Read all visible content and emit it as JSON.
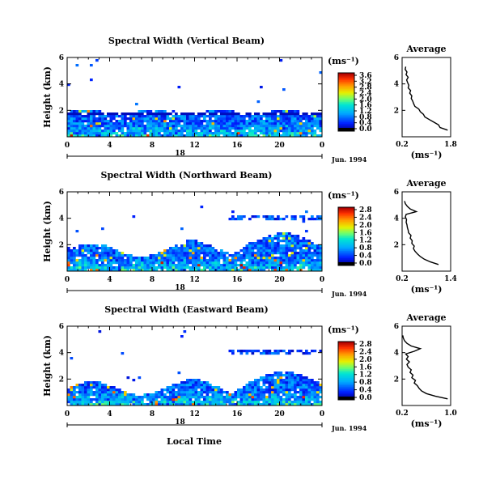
{
  "figure": {
    "xlabel": "Local Time",
    "date_label": "Jun. 1994",
    "day_label": "18",
    "ylabel": "Height (km)",
    "unit_label": "(ms⁻¹)",
    "average_title": "Average",
    "average_xlabel": "(ms⁻¹)"
  },
  "chart_data": [
    {
      "type": "heatmap",
      "title": "Spectral Width (Vertical Beam)",
      "x_ticks": [
        "0",
        "4",
        "8",
        "12",
        "16",
        "20",
        "0"
      ],
      "xlim": [
        0,
        24
      ],
      "y_ticks": [
        "6",
        "4",
        "2"
      ],
      "ylim": [
        0,
        6
      ],
      "colorbar": {
        "ticks": [
          "3.6",
          "3.2",
          "2.8",
          "2.4",
          "2.0",
          "1.6",
          "1.2",
          "0.8",
          "0.4",
          "0.0"
        ],
        "max": 3.6
      },
      "profile": {
        "title": "Average",
        "x_ticks": [
          "0.2",
          "1.8"
        ],
        "xlim": [
          0.2,
          1.8
        ],
        "y_ticks": [
          "6",
          "4",
          "2"
        ],
        "ylim": [
          0,
          6
        ],
        "height": [
          0.5,
          0.7,
          0.9,
          1.1,
          1.3,
          1.5,
          1.7,
          1.9,
          2.1,
          2.3,
          2.5,
          2.7,
          2.9,
          3.1,
          3.3,
          3.5,
          3.7,
          3.9,
          4.1,
          4.3,
          4.5,
          4.7,
          4.9,
          5.1,
          5.3
        ],
        "value": [
          1.7,
          1.45,
          1.4,
          1.25,
          1.1,
          0.95,
          0.9,
          0.8,
          0.75,
          0.62,
          0.58,
          0.55,
          0.5,
          0.52,
          0.45,
          0.48,
          0.4,
          0.42,
          0.38,
          0.35,
          0.4,
          0.33,
          0.36,
          0.3,
          0.32
        ]
      }
    },
    {
      "type": "heatmap",
      "title": "Spectral Width (Northward Beam)",
      "x_ticks": [
        "0",
        "4",
        "8",
        "12",
        "16",
        "20",
        "0"
      ],
      "xlim": [
        0,
        24
      ],
      "y_ticks": [
        "6",
        "4",
        "2"
      ],
      "ylim": [
        0,
        6
      ],
      "colorbar": {
        "ticks": [
          "2.8",
          "2.4",
          "2.0",
          "1.6",
          "1.2",
          "0.8",
          "0.4",
          "0.0"
        ],
        "max": 2.8
      },
      "profile": {
        "title": "Average",
        "x_ticks": [
          "0.2",
          "1.4"
        ],
        "xlim": [
          0.2,
          1.4
        ],
        "y_ticks": [
          "6",
          "4",
          "2"
        ],
        "ylim": [
          0,
          6
        ],
        "height": [
          0.5,
          0.7,
          0.9,
          1.1,
          1.3,
          1.5,
          1.7,
          1.9,
          2.1,
          2.3,
          2.5,
          2.7,
          2.9,
          3.1,
          3.3,
          3.5,
          3.7,
          3.9,
          4.1,
          4.3,
          4.5,
          4.7,
          4.9,
          5.1,
          5.3
        ],
        "value": [
          1.1,
          0.9,
          0.75,
          0.65,
          0.58,
          0.52,
          0.48,
          0.5,
          0.44,
          0.45,
          0.4,
          0.42,
          0.36,
          0.35,
          0.33,
          0.32,
          0.3,
          0.31,
          0.28,
          0.3,
          0.55,
          0.4,
          0.33,
          0.28,
          0.26
        ]
      }
    },
    {
      "type": "heatmap",
      "title": "Spectral Width (Eastward Beam)",
      "x_ticks": [
        "0",
        "4",
        "8",
        "12",
        "16",
        "20",
        "0"
      ],
      "xlim": [
        0,
        24
      ],
      "y_ticks": [
        "6",
        "4",
        "2"
      ],
      "ylim": [
        0,
        6
      ],
      "colorbar": {
        "ticks": [
          "2.8",
          "2.4",
          "2.0",
          "1.6",
          "1.2",
          "0.8",
          "0.4",
          "0.0"
        ],
        "max": 2.8
      },
      "profile": {
        "title": "Average",
        "x_ticks": [
          "0.2",
          "1.0"
        ],
        "xlim": [
          0.2,
          1.0
        ],
        "y_ticks": [
          "6",
          "4",
          "2"
        ],
        "ylim": [
          0,
          6
        ],
        "height": [
          0.5,
          0.7,
          0.9,
          1.1,
          1.3,
          1.5,
          1.7,
          1.9,
          2.1,
          2.3,
          2.5,
          2.7,
          2.9,
          3.1,
          3.3,
          3.5,
          3.7,
          3.9,
          4.1,
          4.3,
          4.5,
          4.7,
          4.9,
          5.1,
          5.3
        ],
        "value": [
          0.95,
          0.75,
          0.6,
          0.52,
          0.48,
          0.45,
          0.4,
          0.42,
          0.36,
          0.38,
          0.33,
          0.35,
          0.3,
          0.28,
          0.32,
          0.27,
          0.3,
          0.26,
          0.4,
          0.5,
          0.35,
          0.28,
          0.24,
          0.22,
          0.21
        ]
      }
    }
  ]
}
